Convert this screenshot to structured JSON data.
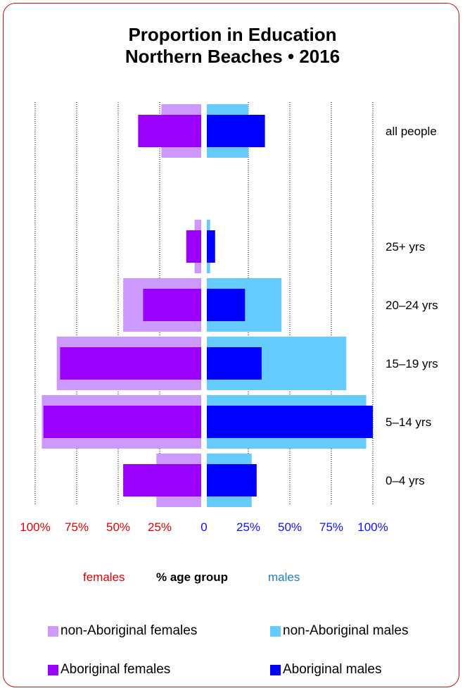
{
  "title_line1": "Proportion in Education",
  "title_line2": "Northern Beaches • 2016",
  "axis_words": {
    "female": "females",
    "center": "% age group",
    "male": "males"
  },
  "colors": {
    "nonaboriginal_female": "#cc99ff",
    "aboriginal_female": "#9900ff",
    "nonaboriginal_male": "#66ccff",
    "aboriginal_male": "#0000ff",
    "female_text": "#e00000",
    "male_tick_text": "#1010ff",
    "male_word_text": "#1e7fc4",
    "frame": "#b8161b"
  },
  "legend": [
    {
      "label": "non-Aboriginal females",
      "color": "#cc99ff"
    },
    {
      "label": "non-Aboriginal males",
      "color": "#66ccff"
    },
    {
      "label": "Aboriginal females",
      "color": "#9900ff"
    },
    {
      "label": "Aboriginal males",
      "color": "#0000ff"
    }
  ],
  "chart_data": {
    "type": "bar",
    "orientation": "horizontal-pyramid",
    "categories": [
      "all people",
      "25+ yrs",
      "20–24 yrs",
      "15–19 yrs",
      "5–14 yrs",
      "0–4 yrs"
    ],
    "female_ticks": [
      "100%",
      "75%",
      "50%",
      "25%"
    ],
    "male_ticks": [
      "0",
      "25%",
      "50%",
      "75%",
      "100%"
    ],
    "xlim": [
      0,
      100
    ],
    "grid": true,
    "series": [
      {
        "name": "non-Aboriginal females",
        "side": "female",
        "values": [
          24,
          4,
          47,
          87,
          96,
          27
        ]
      },
      {
        "name": "Aboriginal females",
        "side": "female",
        "values": [
          38,
          9,
          35,
          85,
          95,
          47
        ]
      },
      {
        "name": "non-Aboriginal males",
        "side": "male",
        "values": [
          25,
          2,
          45,
          84,
          96,
          27
        ]
      },
      {
        "name": "Aboriginal males",
        "side": "male",
        "values": [
          35,
          5,
          23,
          33,
          100,
          30
        ]
      }
    ]
  }
}
